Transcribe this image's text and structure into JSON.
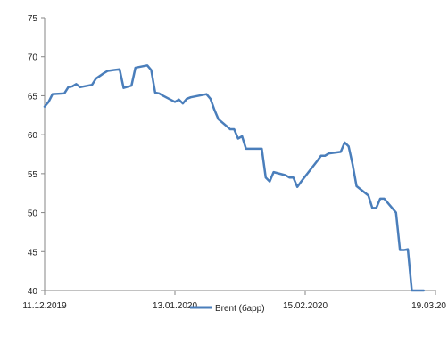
{
  "chart_data": {
    "type": "line",
    "title": "",
    "xlabel": "",
    "ylabel": "",
    "x_ticks": [
      "11.12.2019",
      "13.01.2020",
      "15.02.2020",
      "19.03.20"
    ],
    "y_ticks": [
      40,
      45,
      50,
      55,
      60,
      65,
      70,
      75
    ],
    "ylim": [
      40,
      75
    ],
    "xlim": [
      "2019-12-11",
      "2020-03-19"
    ],
    "grid": false,
    "legend_position": "bottom-center",
    "series": [
      {
        "name": "Brent (барр)",
        "color": "#4a7ebb",
        "x": [
          "2019-12-11",
          "2019-12-12",
          "2019-12-13",
          "2019-12-16",
          "2019-12-17",
          "2019-12-18",
          "2019-12-19",
          "2019-12-20",
          "2019-12-23",
          "2019-12-24",
          "2019-12-26",
          "2019-12-27",
          "2019-12-30",
          "2019-12-31",
          "2020-01-02",
          "2020-01-03",
          "2020-01-06",
          "2020-01-07",
          "2020-01-08",
          "2020-01-09",
          "2020-01-10",
          "2020-01-13",
          "2020-01-14",
          "2020-01-15",
          "2020-01-16",
          "2020-01-17",
          "2020-01-21",
          "2020-01-22",
          "2020-01-23",
          "2020-01-24",
          "2020-01-27",
          "2020-01-28",
          "2020-01-29",
          "2020-01-30",
          "2020-01-31",
          "2020-02-03",
          "2020-02-04",
          "2020-02-05",
          "2020-02-06",
          "2020-02-07",
          "2020-02-10",
          "2020-02-11",
          "2020-02-12",
          "2020-02-13",
          "2020-02-14",
          "2020-02-18",
          "2020-02-19",
          "2020-02-20",
          "2020-02-21",
          "2020-02-24",
          "2020-02-25",
          "2020-02-26",
          "2020-02-27",
          "2020-02-28",
          "2020-03-02",
          "2020-03-03",
          "2020-03-04",
          "2020-03-05",
          "2020-03-06",
          "2020-03-09",
          "2020-03-10",
          "2020-03-11",
          "2020-03-12",
          "2020-03-13",
          "2020-03-16"
        ],
        "values": [
          63.6,
          64.2,
          65.2,
          65.3,
          66.1,
          66.2,
          66.5,
          66.1,
          66.4,
          67.2,
          67.9,
          68.2,
          68.4,
          66.0,
          66.3,
          68.6,
          68.9,
          68.3,
          65.4,
          65.3,
          65.0,
          64.2,
          64.5,
          64.0,
          64.6,
          64.8,
          65.2,
          64.6,
          63.2,
          62.0,
          60.7,
          60.7,
          59.5,
          59.8,
          58.2,
          58.2,
          58.2,
          54.5,
          54.0,
          55.2,
          54.8,
          54.5,
          54.5,
          53.3,
          54.0,
          56.6,
          57.3,
          57.3,
          57.6,
          57.8,
          59.0,
          58.5,
          56.2,
          53.4,
          52.2,
          50.6,
          50.6,
          51.8,
          51.8,
          50.0,
          45.2,
          45.2,
          45.3,
          40.0,
          40.0
        ]
      }
    ]
  }
}
